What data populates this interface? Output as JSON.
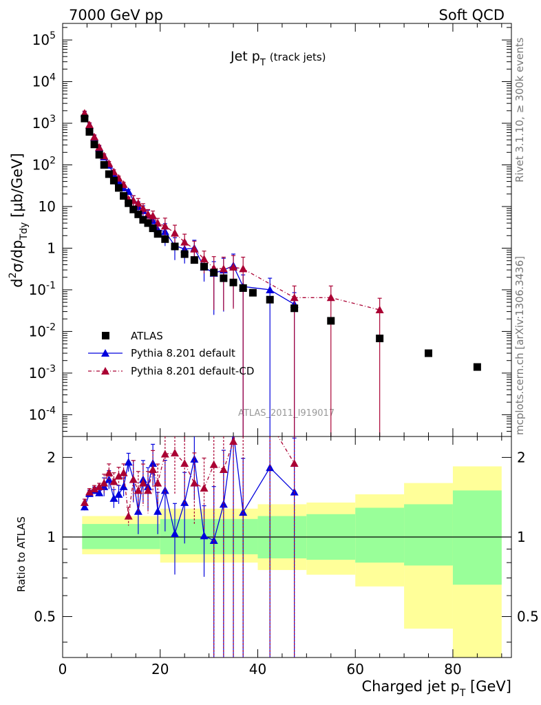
{
  "header": {
    "left": "7000 GeV pp",
    "right": "Soft QCD"
  },
  "side_labels": {
    "rivet": "Rivet 3.1.10, ≥ 300k events",
    "mcplots": "mcplots.cern.ch [arXiv:1306.3436]"
  },
  "plot_title": {
    "main": "Jet p",
    "sub": "T",
    "suffix": "(track jets)"
  },
  "analysis_id": "ATLAS_2011_I919017",
  "y_axis_top": {
    "pre": "d",
    "sup": "2",
    "mid": "σ/dp",
    "sub": "Tdy",
    "post": " [μb/GeV]"
  },
  "y_axis_bottom": "Ratio to ATLAS",
  "x_axis": {
    "pre": "Charged jet p",
    "sub": "T",
    "post": " [GeV]"
  },
  "legend": {
    "atlas": "ATLAS",
    "default": "Pythia 8.201 default",
    "cd": "Pythia 8.201 default-CD"
  },
  "colors": {
    "atlas": "#000000",
    "default": "#0000dd",
    "cd": "#aa0033",
    "band_outer": "#ffff99",
    "band_inner": "#99ff99"
  },
  "chart_data": [
    {
      "type": "scatter",
      "scale": "log",
      "x": [
        4.5,
        5.5,
        6.5,
        7.5,
        8.5,
        9.5,
        10.5,
        11.5,
        12.5,
        13.5,
        14.5,
        15.5,
        16.5,
        17.5,
        18.5,
        19.5,
        21,
        23,
        25,
        27,
        29,
        31,
        33,
        35,
        37,
        39,
        42.5,
        47.5,
        55,
        65,
        75,
        85
      ],
      "xlim": [
        0,
        92
      ],
      "ylim": [
        3e-05,
        250000
      ],
      "x_ticks": [
        0,
        20,
        40,
        60,
        80
      ],
      "y_ticks": [
        "10^-4",
        "10^-3",
        "10^-2",
        "10^-1",
        "1",
        "10",
        "10^2",
        "10^3",
        "10^4",
        "10^5"
      ],
      "series": [
        {
          "name": "ATLAS",
          "values": [
            1300,
            620,
            310,
            175,
            100,
            60,
            42,
            28,
            18,
            12,
            8.5,
            6.5,
            4.8,
            4.0,
            3.0,
            2.2,
            1.65,
            1.1,
            0.72,
            0.52,
            0.36,
            0.26,
            0.19,
            0.15,
            0.11,
            0.085,
            0.058,
            0.036,
            0.018,
            0.0068,
            0.003,
            0.0014
          ]
        },
        {
          "name": "Pythia 8.201 default",
          "values": [
            1700,
            900,
            460,
            255,
            155,
            98,
            58,
            40,
            28,
            23,
            14,
            10,
            8.0,
            6.3,
            4.6,
            2.8,
            2.5,
            1.15,
            0.95,
            1.0,
            0.35,
            0.25,
            0.3,
            0.38,
            0.12,
            null,
            0.1,
            0.045,
            null,
            null,
            null,
            null
          ]
        },
        {
          "name": "Pythia 8.201 default-CD",
          "values": [
            1750,
            920,
            470,
            265,
            165,
            108,
            68,
            48,
            34,
            15,
            14,
            12,
            9.0,
            6.5,
            6.0,
            4.0,
            3.4,
            2.3,
            1.4,
            0.95,
            0.55,
            0.33,
            0.32,
            0.35,
            0.32,
            null,
            null,
            0.065,
            0.065,
            0.033,
            null,
            null
          ]
        }
      ]
    },
    {
      "type": "line",
      "title": "Ratio to ATLAS",
      "scale": "log",
      "xlim": [
        0,
        92
      ],
      "ylim": [
        0.35,
        2.4
      ],
      "y_ticks": [
        0.5,
        1,
        2
      ],
      "x": [
        4.5,
        5.5,
        6.5,
        7.5,
        8.5,
        9.5,
        10.5,
        11.5,
        12.5,
        13.5,
        14.5,
        15.5,
        16.5,
        17.5,
        18.5,
        19.5,
        21,
        23,
        25,
        27,
        29,
        31,
        33,
        35,
        37,
        42.5,
        47.5
      ],
      "series": [
        {
          "name": "Pythia 8.201 default",
          "values": [
            1.3,
            1.46,
            1.5,
            1.47,
            1.55,
            1.65,
            1.4,
            1.45,
            1.55,
            1.92,
            1.65,
            1.25,
            1.65,
            1.55,
            1.9,
            1.25,
            1.5,
            1.03,
            1.35,
            1.97,
            1.01,
            0.97,
            1.33,
            2.5,
            1.24,
            1.83,
            1.48
          ]
        },
        {
          "name": "Pythia 8.201 default-CD",
          "values": [
            1.35,
            1.48,
            1.52,
            1.55,
            1.6,
            1.75,
            1.62,
            1.7,
            1.75,
            1.2,
            1.65,
            1.5,
            1.6,
            1.5,
            1.8,
            1.6,
            2.06,
            2.08,
            1.9,
            1.6,
            1.53,
            1.88,
            1.8,
            2.3,
            3.0,
            2.7,
            1.9
          ]
        }
      ],
      "band": {
        "x_edges": [
          4,
          20,
          40,
          50,
          60,
          70,
          80,
          90
        ],
        "inner": [
          [
            0.9,
            1.12
          ],
          [
            0.86,
            1.17
          ],
          [
            0.83,
            1.2
          ],
          [
            0.82,
            1.22
          ],
          [
            0.8,
            1.29
          ],
          [
            0.78,
            1.33
          ],
          [
            0.66,
            1.5
          ]
        ],
        "outer": [
          [
            0.86,
            1.2
          ],
          [
            0.8,
            1.28
          ],
          [
            0.75,
            1.33
          ],
          [
            0.72,
            1.35
          ],
          [
            0.65,
            1.45
          ],
          [
            0.45,
            1.6
          ],
          [
            0.33,
            1.85
          ]
        ]
      }
    }
  ]
}
